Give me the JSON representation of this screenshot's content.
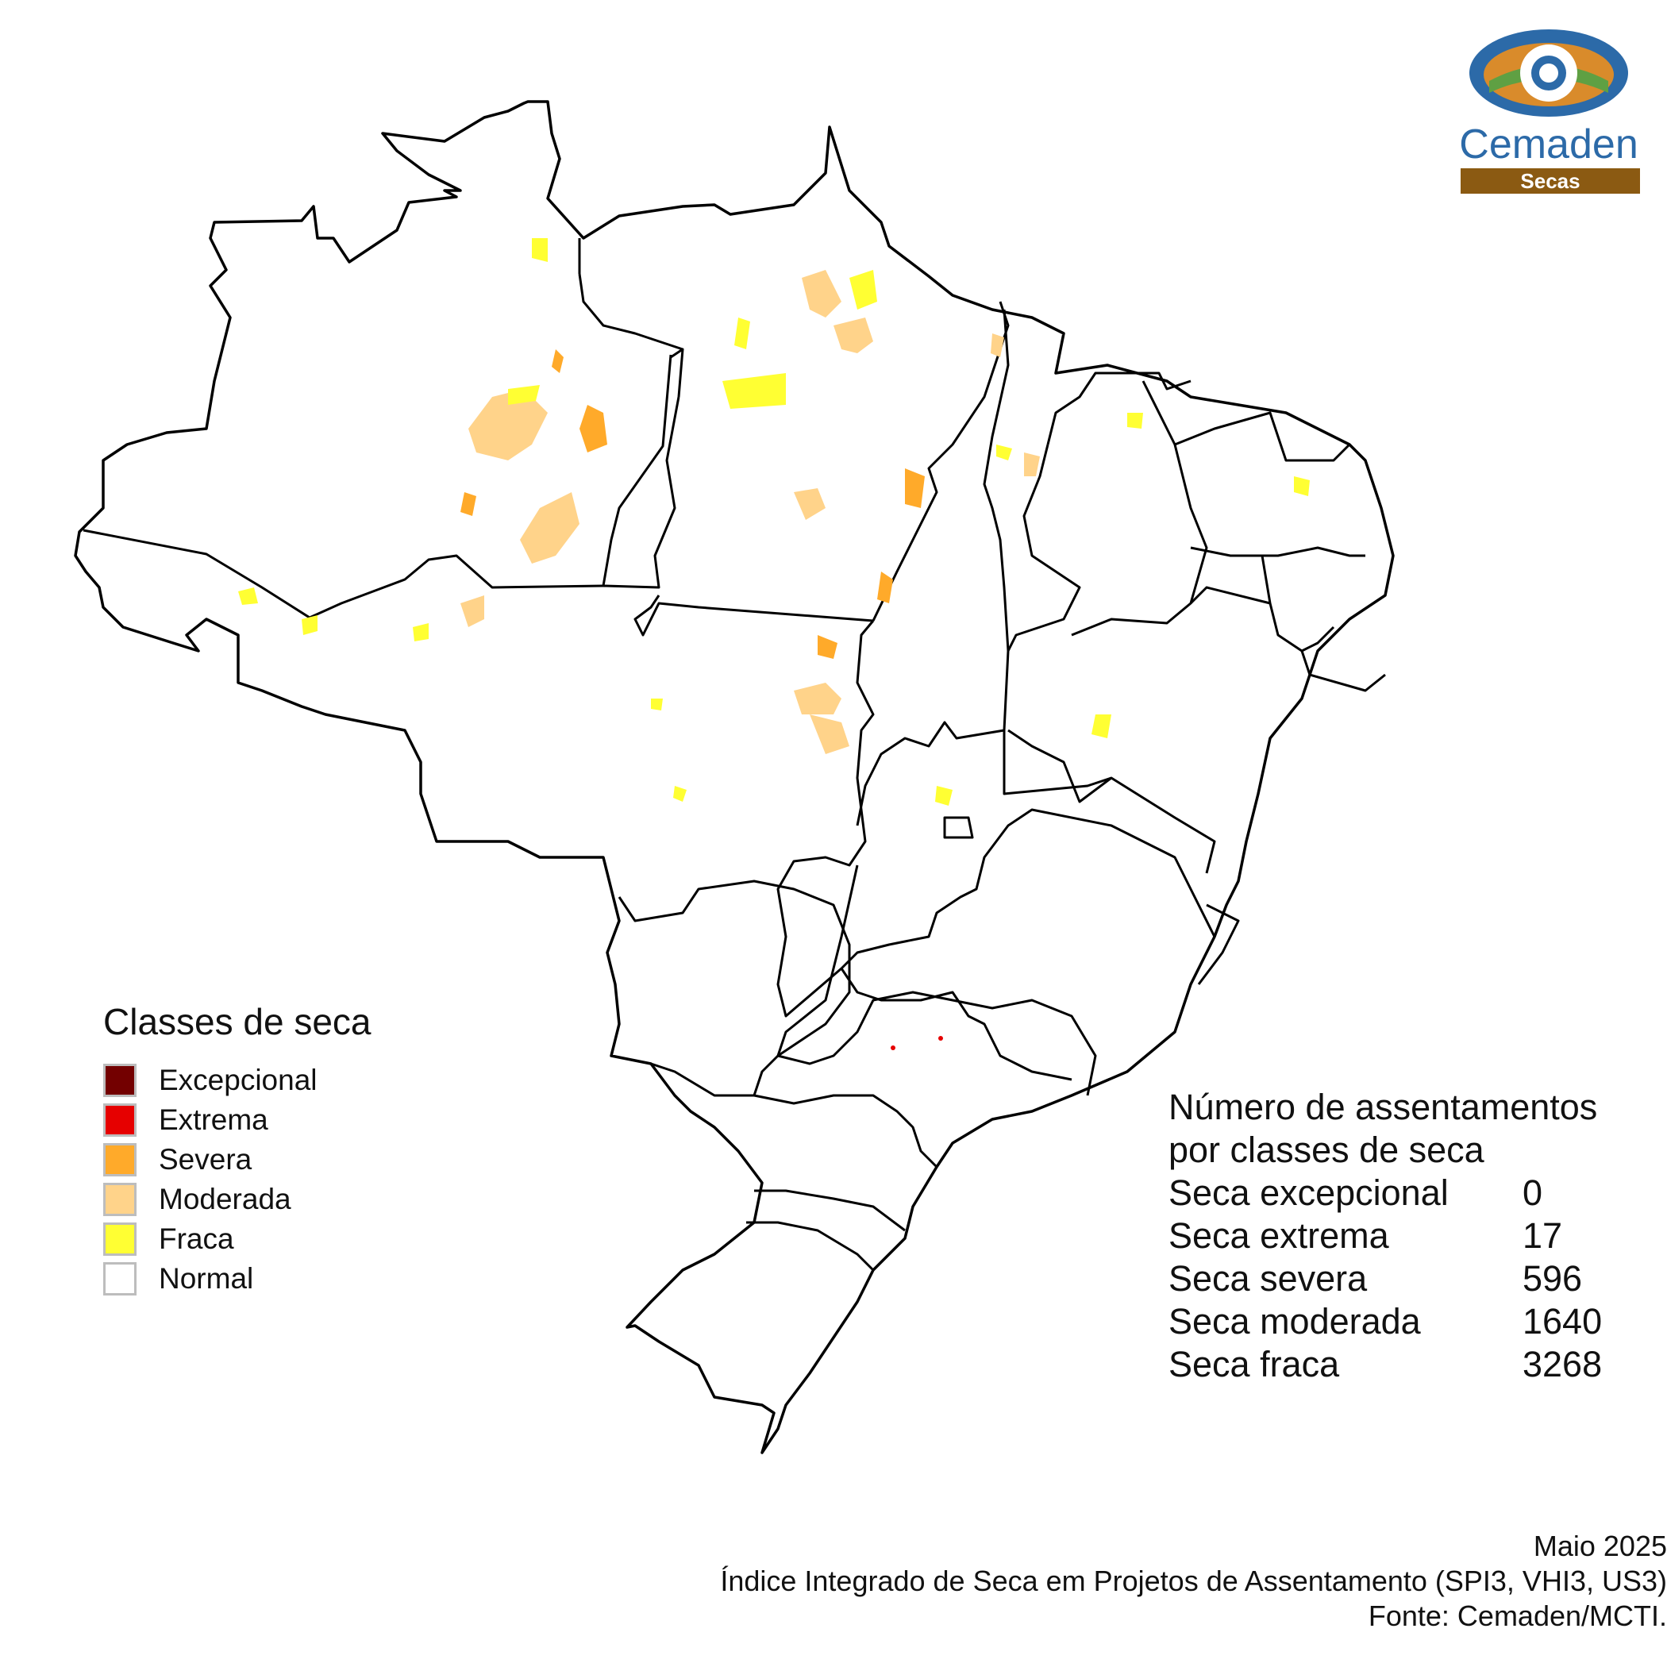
{
  "logo": {
    "name": "Cemaden",
    "subtitle": "Secas"
  },
  "legend": {
    "title": "Classes de seca",
    "items": [
      {
        "label": "Excepcional",
        "color": "#730000"
      },
      {
        "label": "Extrema",
        "color": "#e60000"
      },
      {
        "label": "Severa",
        "color": "#ffaa2a"
      },
      {
        "label": "Moderada",
        "color": "#ffd38a"
      },
      {
        "label": "Fraca",
        "color": "#ffff33"
      },
      {
        "label": "Normal",
        "color": "#ffffff"
      }
    ]
  },
  "counts": {
    "heading_line1": "Número de assentamentos",
    "heading_line2": "por classes de seca",
    "rows": [
      {
        "label": "Seca excepcional",
        "value": "0"
      },
      {
        "label": "Seca extrema",
        "value": "17"
      },
      {
        "label": "Seca severa",
        "value": "596"
      },
      {
        "label": "Seca moderada",
        "value": "1640"
      },
      {
        "label": "Seca fraca",
        "value": "3268"
      }
    ]
  },
  "footer": {
    "date": "Maio 2025",
    "index": "Índice Integrado de Seca em Projetos de Assentamento (SPI3, VHI3, US3)",
    "source": "Fonte: Cemaden/MCTI."
  },
  "colors": {
    "excepcional": "#730000",
    "extrema": "#e60000",
    "severa": "#ffaa2a",
    "moderada": "#ffd38a",
    "fraca": "#ffff33",
    "border": "#000000",
    "logo_blue": "#2c6aa8",
    "logo_brown": "#8b5a12"
  }
}
